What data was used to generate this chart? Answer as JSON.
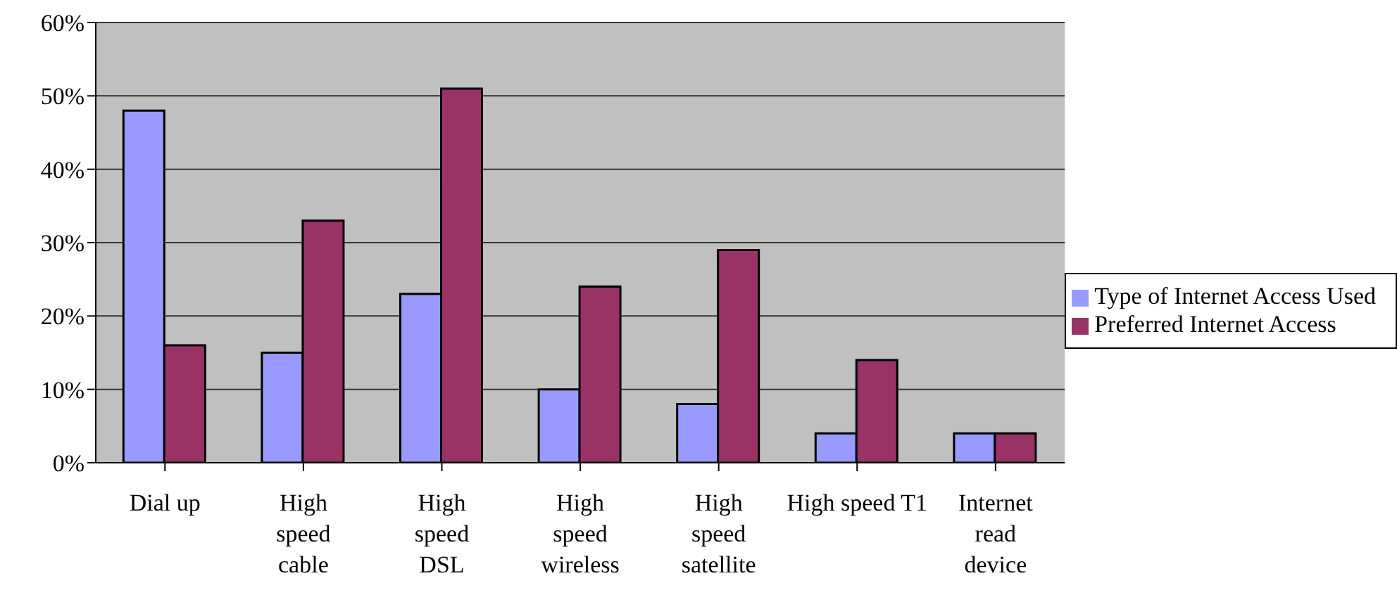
{
  "chart_data": {
    "type": "bar",
    "categories": [
      "Dial up",
      "High\nspeed\ncable",
      "High\nspeed\nDSL",
      "High\nspeed\nwireless",
      "High\nspeed\nsatellite",
      "High speed T1",
      "Internet\nread\ndevice"
    ],
    "series": [
      {
        "name": "Type of Internet Access Used",
        "color": "#9999ff",
        "values": [
          48,
          15,
          23,
          10,
          8,
          4,
          4
        ]
      },
      {
        "name": "Preferred Internet Access",
        "color": "#993366",
        "values": [
          16,
          33,
          51,
          24,
          29,
          14,
          4
        ]
      }
    ],
    "ylim": [
      0,
      60
    ],
    "yticks": [
      {
        "value": 0,
        "label": "0%"
      },
      {
        "value": 10,
        "label": "10%"
      },
      {
        "value": 20,
        "label": "20%"
      },
      {
        "value": 30,
        "label": "30%"
      },
      {
        "value": 40,
        "label": "40%"
      },
      {
        "value": 50,
        "label": "50%"
      },
      {
        "value": 60,
        "label": "60%"
      }
    ],
    "grid": "y",
    "legend": "right"
  }
}
